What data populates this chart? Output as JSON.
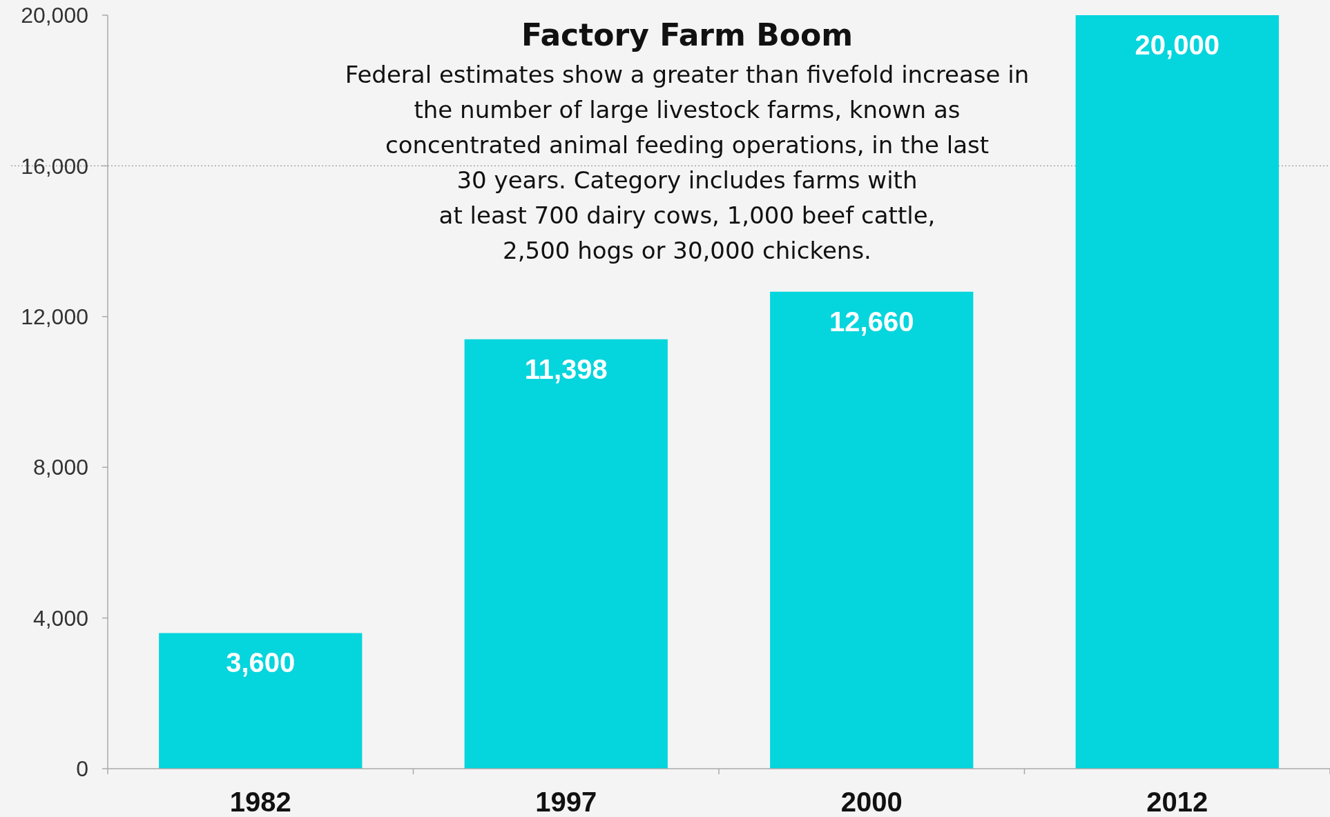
{
  "chart_data": {
    "type": "bar",
    "title": "Factory Farm Boom",
    "subtitle": "Federal estimates show a greater than fivefold increase in\nthe number of large livestock farms, known as\nconcentrated animal feeding operations, in the last\n30 years. Category includes farms with\nat least 700 dairy cows, 1,000 beef cattle,\n2,500 hogs or 30,000 chickens.",
    "categories": [
      "1982",
      "1997",
      "2000",
      "2012"
    ],
    "values": [
      3600,
      11398,
      12660,
      20000
    ],
    "color": "#05d5dd",
    "ylim": [
      0,
      20000
    ],
    "yticks": [
      {
        "value": 0,
        "label": "0"
      },
      {
        "value": 4000,
        "label": "4,000"
      },
      {
        "value": 8000,
        "label": "8,000"
      },
      {
        "value": 12000,
        "label": "12,000"
      },
      {
        "value": 16000,
        "label": "16,000"
      },
      {
        "value": 20000,
        "label": "20,000"
      }
    ],
    "value_labels": [
      "3,600",
      "11,398",
      "12,660",
      "20,000"
    ],
    "ref_lines": [
      {
        "axis": "y",
        "value": 16000,
        "line_style": "dotted",
        "color": "#999999"
      }
    ]
  }
}
